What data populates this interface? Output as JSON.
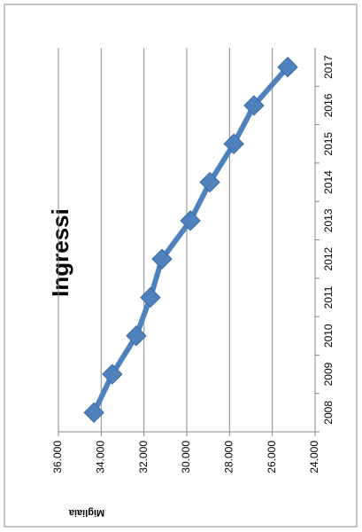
{
  "chart_data": {
    "type": "line",
    "title": "Ingressi",
    "y_label": "Migliaia",
    "categories": [
      "2008",
      "2009",
      "2010",
      "2011",
      "2012",
      "2013",
      "2014",
      "2015",
      "2016",
      "2017"
    ],
    "values": [
      34340,
      33480,
      32360,
      31700,
      31160,
      29830,
      28920,
      27800,
      26860,
      25280
    ],
    "color": "#4f81bd",
    "ylim": [
      24000,
      36000
    ],
    "yticks": [
      {
        "value": 24000,
        "label": "24.000"
      },
      {
        "value": 26000,
        "label": "26.000"
      },
      {
        "value": 28000,
        "label": "28.000"
      },
      {
        "value": 30000,
        "label": "30.000"
      },
      {
        "value": 32000,
        "label": "32.000"
      },
      {
        "value": 34000,
        "label": "34.000"
      },
      {
        "value": 36000,
        "label": "36.000"
      }
    ],
    "grid": true
  }
}
